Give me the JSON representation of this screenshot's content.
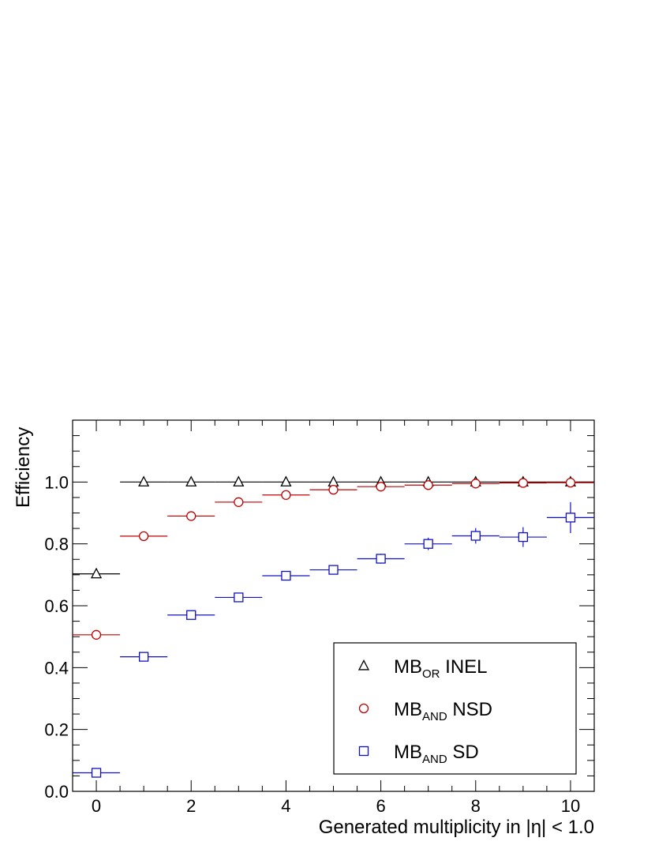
{
  "chart_data": {
    "type": "scatter",
    "xlabel": "Generated multiplicity in |η| < 1.0",
    "ylabel": "Efficiency",
    "xlim": [
      -0.5,
      10.5
    ],
    "ylim": [
      0.0,
      1.2
    ],
    "x_ticks": [
      "0",
      "2",
      "4",
      "6",
      "8",
      "10"
    ],
    "y_ticks": [
      "0.0",
      "0.2",
      "0.4",
      "0.6",
      "0.8",
      "1.0"
    ],
    "grid": false,
    "legend_position": "bottom-right",
    "x": [
      0,
      1,
      2,
      3,
      4,
      5,
      6,
      7,
      8,
      9,
      10
    ],
    "series": [
      {
        "legend_main": "MB",
        "legend_sub": "OR",
        "legend_rest": " INEL",
        "marker": "triangle",
        "color": "#000000",
        "values": [
          0.703,
          1.0,
          1.0,
          1.0,
          1.0,
          1.0,
          1.0,
          1.0,
          1.0,
          1.0,
          1.0
        ],
        "y_errors": [
          0.005,
          0.002,
          0.002,
          0.002,
          0.002,
          0.002,
          0.002,
          0.002,
          0.002,
          0.002,
          0.002
        ]
      },
      {
        "legend_main": "MB",
        "legend_sub": "AND",
        "legend_rest": " NSD",
        "marker": "circle",
        "color": "#c00000",
        "values": [
          0.506,
          0.825,
          0.89,
          0.935,
          0.958,
          0.975,
          0.985,
          0.99,
          0.995,
          0.997,
          0.998
        ],
        "y_errors": [
          0.005,
          0.004,
          0.004,
          0.003,
          0.003,
          0.003,
          0.003,
          0.003,
          0.003,
          0.003,
          0.003
        ]
      },
      {
        "legend_main": "MB",
        "legend_sub": "AND",
        "legend_rest": " SD",
        "marker": "square",
        "color": "#1010c0",
        "values": [
          0.06,
          0.435,
          0.57,
          0.627,
          0.697,
          0.716,
          0.752,
          0.8,
          0.826,
          0.822,
          0.885
        ],
        "y_errors": [
          0.004,
          0.006,
          0.008,
          0.01,
          0.011,
          0.013,
          0.016,
          0.02,
          0.025,
          0.032,
          0.05
        ]
      }
    ]
  }
}
